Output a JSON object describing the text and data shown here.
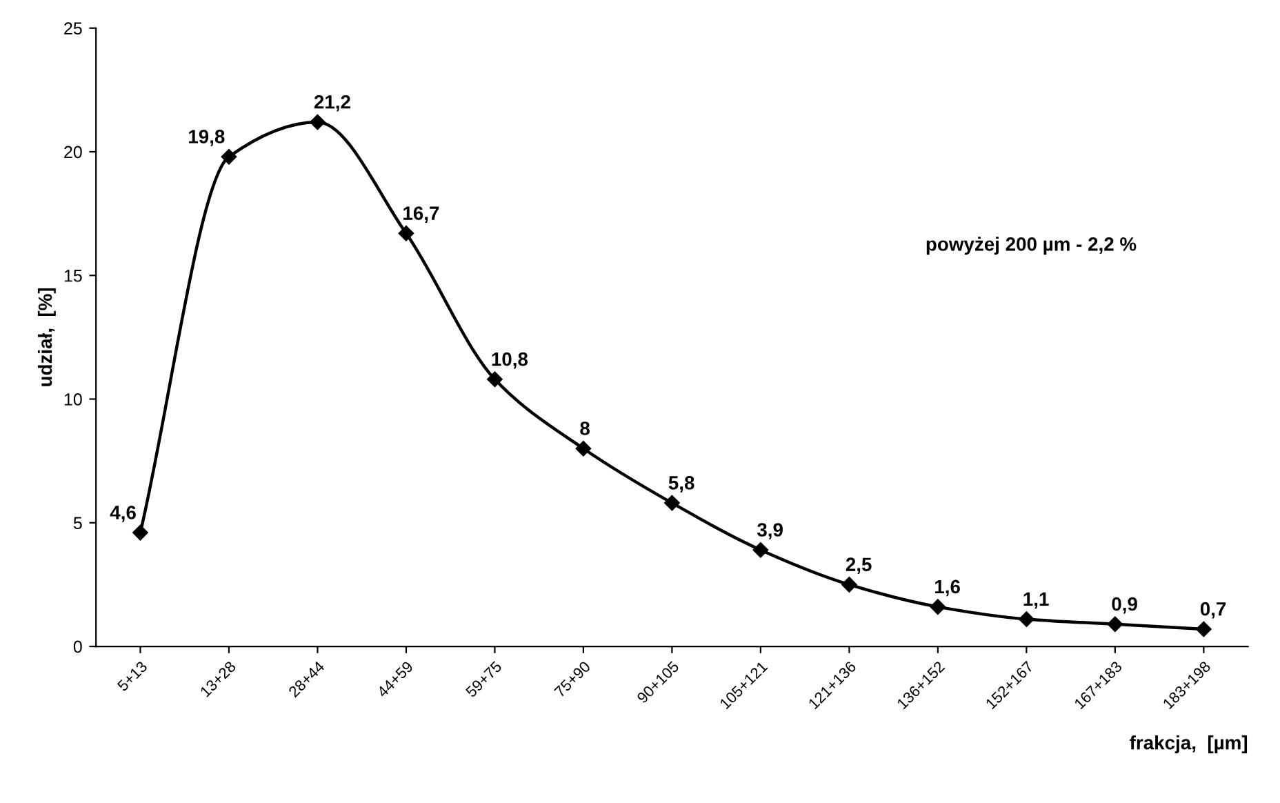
{
  "chart_data": {
    "type": "line",
    "xlabel": "frakcja,  [µm]",
    "ylabel": "udział,  [%]",
    "categories": [
      "5+13",
      "13+28",
      "28+44",
      "44+59",
      "59+75",
      "75+90",
      "90+105",
      "105+121",
      "121+136",
      "136+152",
      "152+167",
      "167+183",
      "183+198"
    ],
    "values": [
      4.6,
      19.8,
      21.2,
      16.7,
      10.8,
      8,
      5.8,
      3.9,
      2.5,
      1.6,
      1.1,
      0.9,
      0.7
    ],
    "value_labels": [
      "4,6",
      "19,8",
      "21,2",
      "16,7",
      "10,8",
      "8",
      "5,8",
      "3,9",
      "2,5",
      "1,6",
      "1,1",
      "0,9",
      "0,7"
    ],
    "color": "#000000",
    "marker": "diamond",
    "line_style": "solid",
    "grid": false,
    "ylim": [
      0,
      25
    ],
    "yticks": [
      0,
      5,
      10,
      15,
      20,
      25
    ],
    "annotations": [
      "powyżej 200 µm - 2,2 %"
    ]
  }
}
